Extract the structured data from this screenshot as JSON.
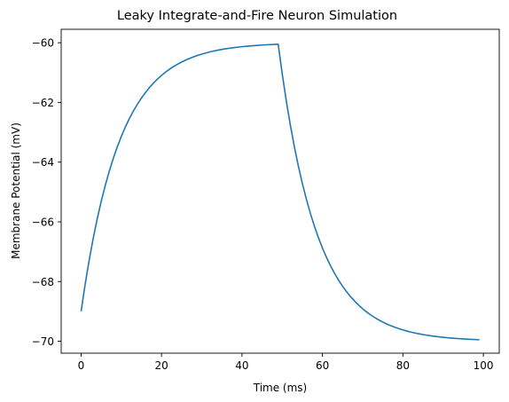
{
  "chart_data": {
    "type": "line",
    "title": "Leaky Integrate-and-Fire Neuron Simulation",
    "xlabel": "Time (ms)",
    "ylabel": "Membrane Potential (mV)",
    "xlim": [
      -4.95,
      103.95
    ],
    "ylim": [
      -70.4,
      -59.55
    ],
    "xticks": [
      0,
      20,
      40,
      60,
      80,
      100
    ],
    "yticks": [
      -70,
      -68,
      -66,
      -64,
      -62,
      -60
    ],
    "xtick_labels": [
      "0",
      "20",
      "40",
      "60",
      "80",
      "100"
    ],
    "ytick_labels": [
      "−70",
      "−68",
      "−66",
      "−64",
      "−62",
      "−60"
    ],
    "grid": false,
    "legend": "none",
    "series": [
      {
        "color": "#1f77b4",
        "x": [
          0,
          1,
          2,
          3,
          4,
          5,
          6,
          7,
          8,
          9,
          10,
          11,
          12,
          13,
          14,
          15,
          16,
          17,
          18,
          19,
          20,
          21,
          22,
          23,
          24,
          25,
          26,
          27,
          28,
          29,
          30,
          31,
          32,
          33,
          34,
          35,
          36,
          37,
          38,
          39,
          40,
          41,
          42,
          43,
          44,
          45,
          46,
          47,
          48,
          49,
          50,
          51,
          52,
          53,
          54,
          55,
          56,
          57,
          58,
          59,
          60,
          61,
          62,
          63,
          64,
          65,
          66,
          67,
          68,
          69,
          70,
          71,
          72,
          73,
          74,
          75,
          76,
          77,
          78,
          79,
          80,
          81,
          82,
          83,
          84,
          85,
          86,
          87,
          88,
          89,
          90,
          91,
          92,
          93,
          94,
          95,
          96,
          97,
          98,
          99
        ],
        "y": [
          -69.0,
          -68.1,
          -67.29,
          -66.561,
          -65.905,
          -65.314,
          -64.783,
          -64.305,
          -63.874,
          -63.487,
          -63.138,
          -62.824,
          -62.542,
          -62.288,
          -62.059,
          -61.853,
          -61.668,
          -61.501,
          -61.351,
          -61.216,
          -61.094,
          -60.985,
          -60.886,
          -60.798,
          -60.718,
          -60.646,
          -60.582,
          -60.524,
          -60.471,
          -60.424,
          -60.382,
          -60.344,
          -60.309,
          -60.278,
          -60.25,
          -60.225,
          -60.203,
          -60.182,
          -60.164,
          -60.148,
          -60.133,
          -60.12,
          -60.108,
          -60.097,
          -60.087,
          -60.078,
          -60.07,
          -60.063,
          -60.057,
          -60.051,
          -61.046,
          -61.941,
          -62.747,
          -63.472,
          -64.125,
          -64.713,
          -65.241,
          -65.717,
          -66.146,
          -66.531,
          -66.878,
          -67.19,
          -67.471,
          -67.724,
          -67.952,
          -68.157,
          -68.341,
          -68.507,
          -68.656,
          -68.791,
          -68.912,
          -69.02,
          -69.118,
          -69.207,
          -69.286,
          -69.357,
          -69.422,
          -69.48,
          -69.532,
          -69.578,
          -69.621,
          -69.659,
          -69.693,
          -69.723,
          -69.751,
          -69.776,
          -69.798,
          -69.818,
          -69.837,
          -69.853,
          -69.868,
          -69.881,
          -69.893,
          -69.903,
          -69.913,
          -69.922,
          -69.929,
          -69.937,
          -69.943,
          -69.949
        ]
      }
    ]
  }
}
